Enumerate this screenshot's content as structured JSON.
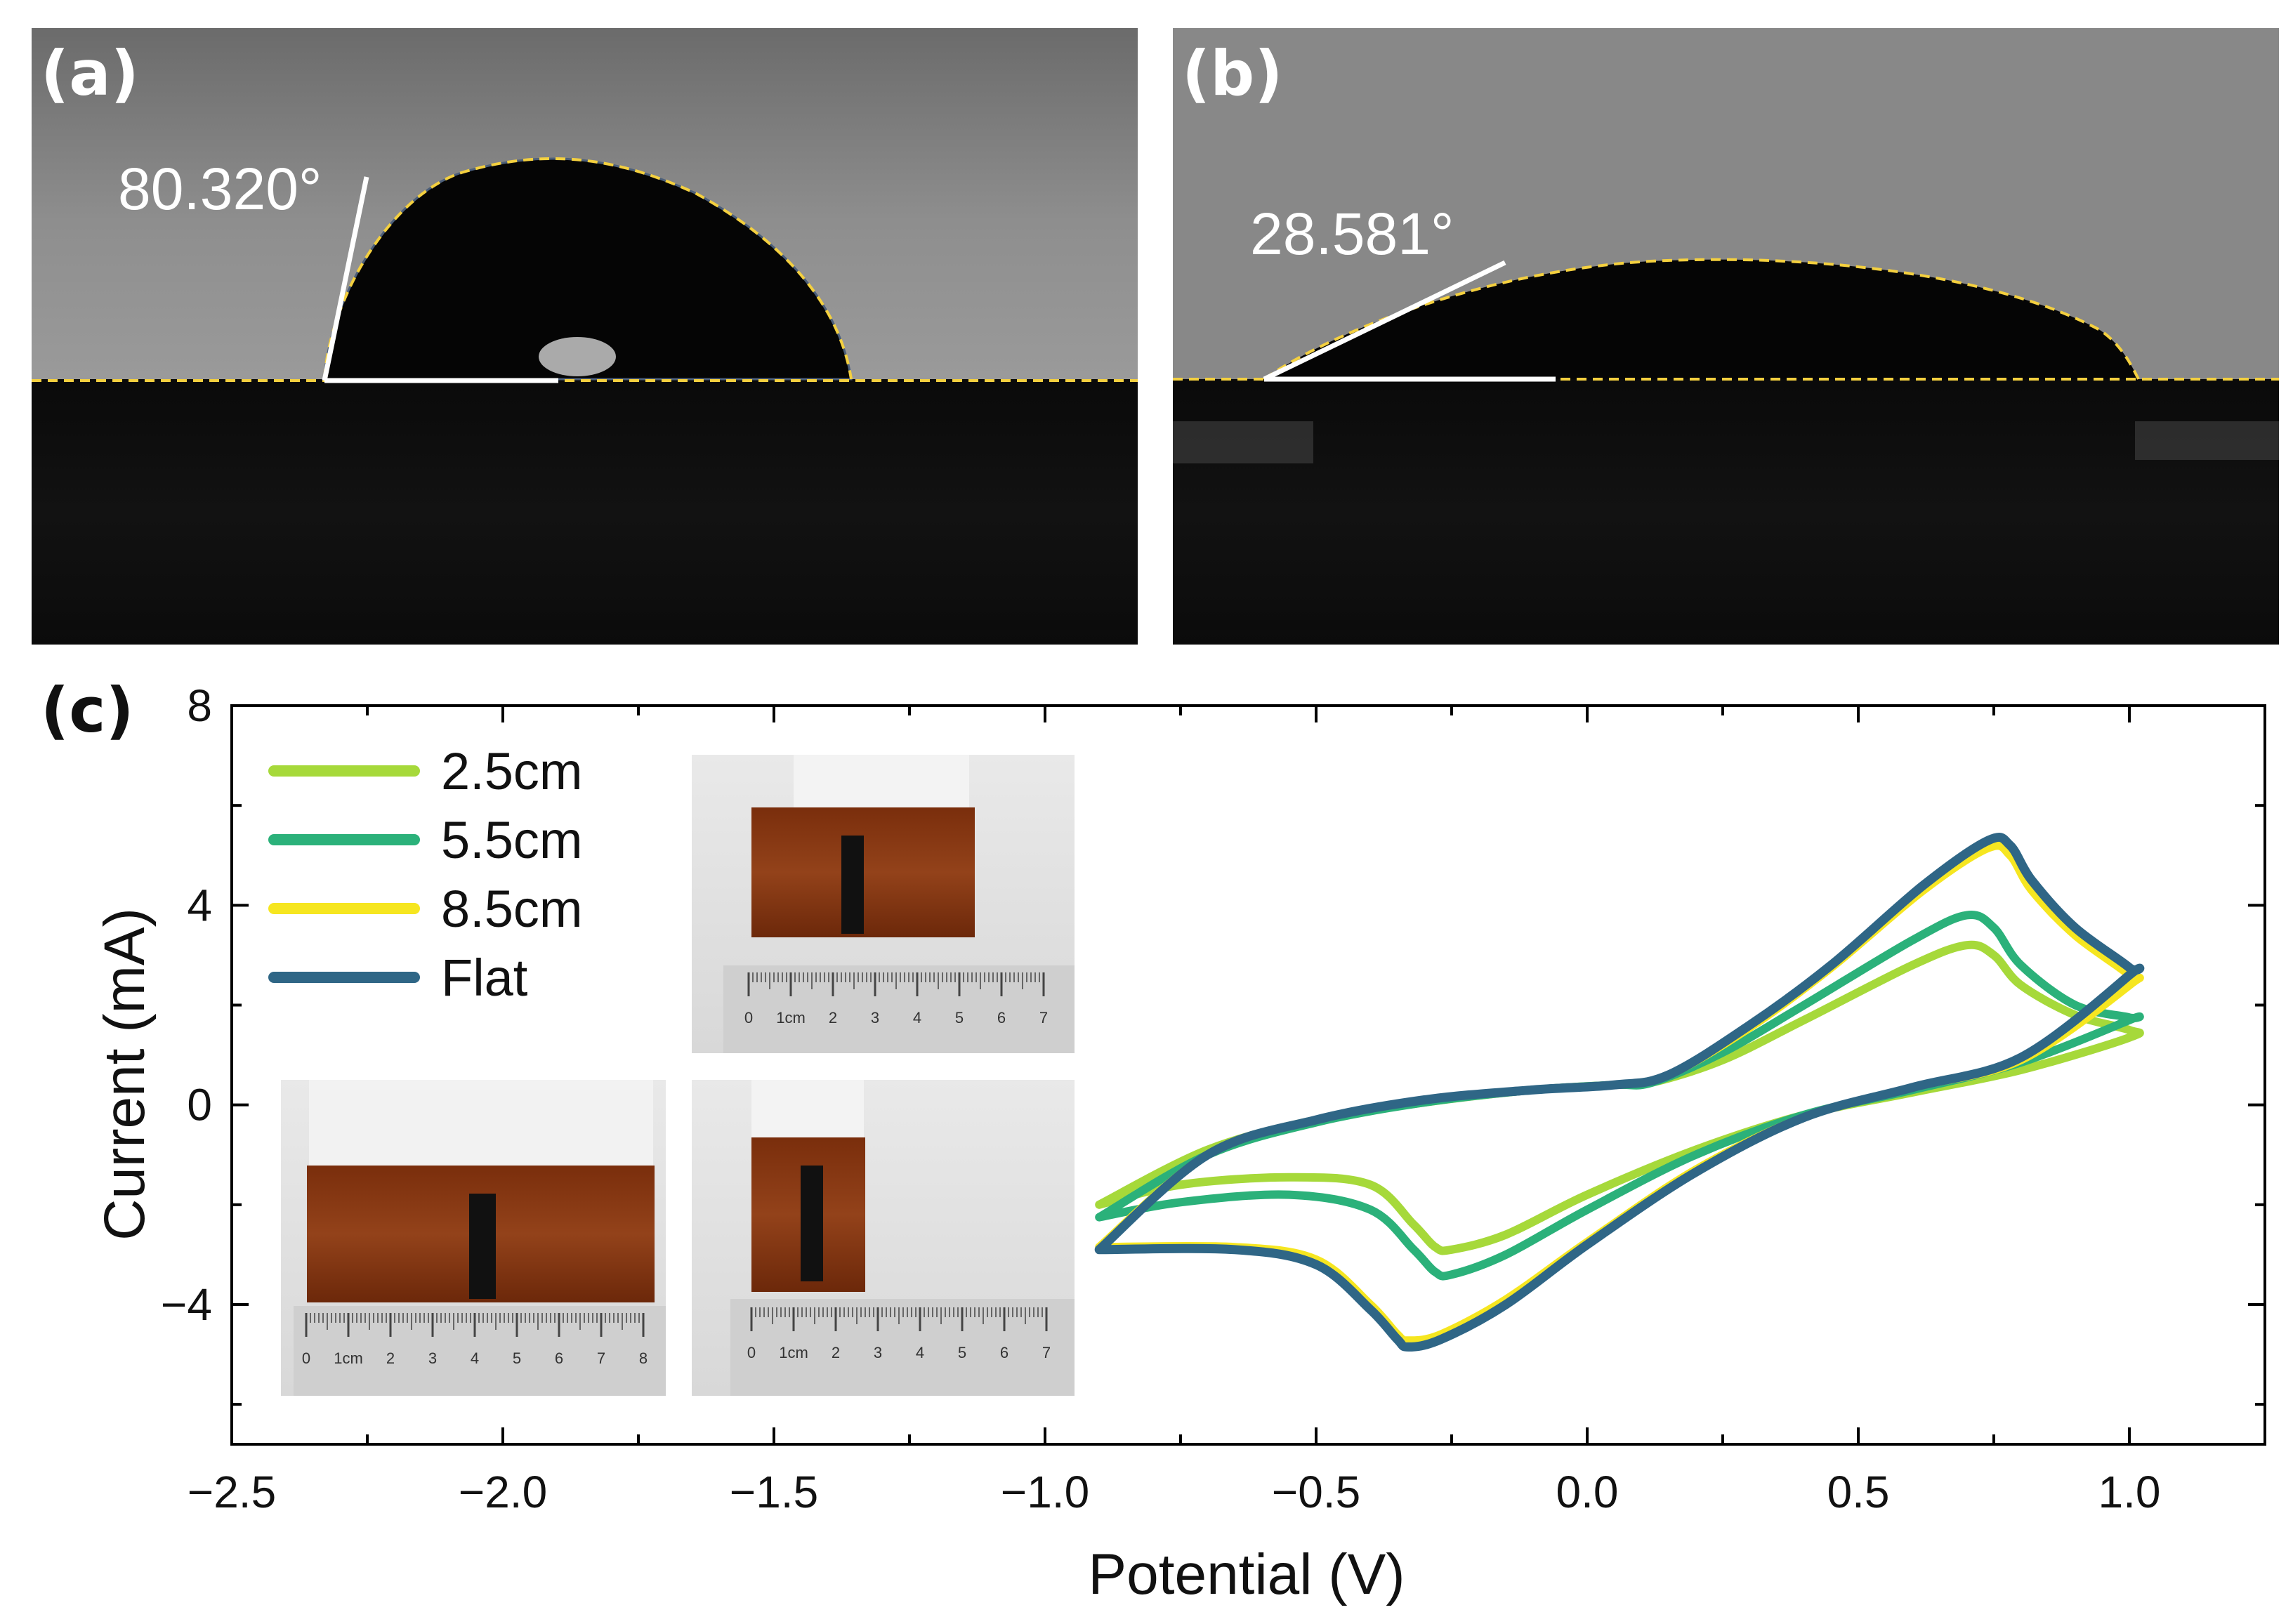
{
  "panels": {
    "a": {
      "label": "(a)",
      "angle": "80.320°"
    },
    "b": {
      "label": "(b)",
      "angle": "28.581°"
    },
    "c": {
      "label": "(c)"
    }
  },
  "colors": {
    "s25": "#a6d93a",
    "s55": "#2bb17a",
    "s85": "#f6e620",
    "flat": "#2f6686",
    "fit": "#f4d03f",
    "photo_bg": "#868686",
    "tape": "#8b3a12"
  },
  "insets": {
    "ruler1": [
      "0",
      "1cm",
      "2",
      "3",
      "4",
      "5",
      "6",
      "7"
    ],
    "ruler2": [
      "0",
      "1cm",
      "2",
      "3",
      "4",
      "5",
      "6",
      "7",
      "8"
    ],
    "ruler3": [
      "0",
      "1cm",
      "2",
      "3",
      "4",
      "5",
      "6",
      "7"
    ]
  },
  "chart_data": {
    "type": "line",
    "title": "",
    "xlabel": "Potential (V)",
    "ylabel": "Current (mA)",
    "xlim": [
      -2.5,
      1.25
    ],
    "ylim": [
      -6.8,
      8
    ],
    "xticks": [
      -2.5,
      -2.0,
      -1.5,
      -1.0,
      -0.5,
      0.0,
      0.5,
      1.0
    ],
    "xtick_labels": [
      "−2.5",
      "−2.0",
      "−1.5",
      "−1.0",
      "−0.5",
      "0.0",
      "0.5",
      "1.0"
    ],
    "yticks": [
      8,
      4,
      0,
      -4
    ],
    "ytick_labels": [
      "8",
      "4",
      "0",
      "−4"
    ],
    "legend_position": "top-left",
    "series": [
      {
        "name": "2.5cm",
        "color": "#a6d93a",
        "x": [
          -0.9,
          -0.75,
          -0.55,
          -0.4,
          -0.32,
          -0.28,
          -0.25,
          -0.15,
          0.0,
          0.2,
          0.4,
          0.6,
          0.8,
          1.0,
          1.0,
          0.9,
          0.8,
          0.75,
          0.7,
          0.6,
          0.4,
          0.25,
          0.12,
          0.05,
          -0.1,
          -0.3,
          -0.5,
          -0.7,
          -0.9
        ],
        "y": [
          -2.0,
          -1.6,
          -1.45,
          -1.6,
          -2.4,
          -2.85,
          -2.9,
          -2.6,
          -1.8,
          -0.9,
          -0.2,
          0.25,
          0.7,
          1.35,
          1.5,
          1.8,
          2.4,
          3.0,
          3.2,
          2.8,
          1.7,
          0.9,
          0.45,
          0.4,
          0.3,
          0.05,
          -0.3,
          -0.9,
          -2.0
        ]
      },
      {
        "name": "5.5cm",
        "color": "#2bb17a",
        "x": [
          -0.9,
          -0.75,
          -0.55,
          -0.4,
          -0.32,
          -0.28,
          -0.25,
          -0.15,
          0.0,
          0.2,
          0.4,
          0.6,
          0.8,
          1.0,
          1.0,
          0.9,
          0.8,
          0.75,
          0.7,
          0.6,
          0.4,
          0.25,
          0.12,
          0.05,
          -0.1,
          -0.3,
          -0.5,
          -0.7,
          -0.9
        ],
        "y": [
          -2.25,
          -1.95,
          -1.8,
          -2.1,
          -2.9,
          -3.35,
          -3.4,
          -3.0,
          -2.1,
          -1.0,
          -0.2,
          0.3,
          0.85,
          1.7,
          1.75,
          2.0,
          2.8,
          3.55,
          3.8,
          3.3,
          2.0,
          1.05,
          0.45,
          0.4,
          0.3,
          0.05,
          -0.35,
          -1.0,
          -2.25
        ]
      },
      {
        "name": "8.5cm",
        "color": "#f6e620",
        "x": [
          -0.9,
          -0.65,
          -0.5,
          -0.4,
          -0.35,
          -0.33,
          -0.27,
          -0.15,
          0.0,
          0.2,
          0.4,
          0.6,
          0.8,
          1.0,
          1.0,
          0.9,
          0.82,
          0.78,
          0.74,
          0.62,
          0.45,
          0.3,
          0.15,
          0.05,
          -0.1,
          -0.3,
          -0.5,
          -0.7,
          -0.9
        ],
        "y": [
          -2.85,
          -2.85,
          -3.1,
          -4.0,
          -4.6,
          -4.72,
          -4.6,
          -3.9,
          -2.75,
          -1.3,
          -0.25,
          0.35,
          0.9,
          2.4,
          2.6,
          3.4,
          4.3,
          5.0,
          5.15,
          4.3,
          2.75,
          1.55,
          0.6,
          0.4,
          0.3,
          0.1,
          -0.3,
          -1.0,
          -2.85
        ]
      },
      {
        "name": "Flat",
        "color": "#2f6686",
        "x": [
          -0.9,
          -0.65,
          -0.5,
          -0.4,
          -0.35,
          -0.33,
          -0.27,
          -0.15,
          0.0,
          0.2,
          0.4,
          0.6,
          0.8,
          1.0,
          1.0,
          0.9,
          0.82,
          0.78,
          0.74,
          0.62,
          0.45,
          0.3,
          0.15,
          0.05,
          -0.1,
          -0.3,
          -0.5,
          -0.7,
          -0.9
        ],
        "y": [
          -2.9,
          -2.9,
          -3.2,
          -4.1,
          -4.7,
          -4.85,
          -4.7,
          -4.0,
          -2.8,
          -1.35,
          -0.25,
          0.35,
          0.95,
          2.6,
          2.75,
          3.55,
          4.5,
          5.2,
          5.3,
          4.4,
          2.8,
          1.6,
          0.6,
          0.4,
          0.3,
          0.1,
          -0.3,
          -1.0,
          -2.9
        ]
      }
    ]
  }
}
